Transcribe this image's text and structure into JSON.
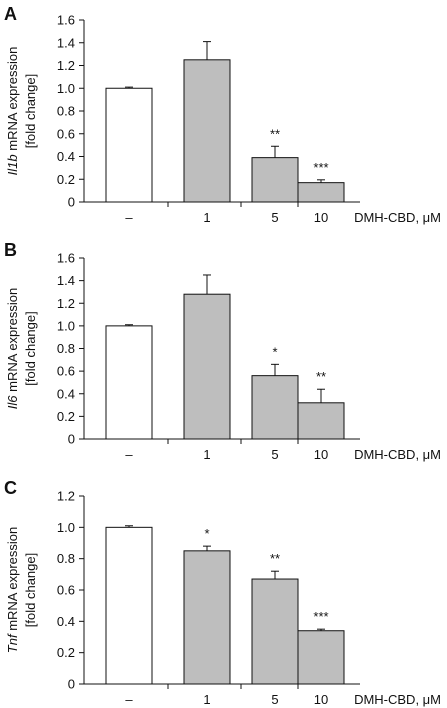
{
  "chart_data": [
    {
      "type": "bar",
      "panel": "A",
      "ylabel_italic": "Il1b",
      "ylabel_rest": " mRNA expression",
      "ylabel_line2": "[fold change]",
      "xlabel": "DMH-CBD, μM",
      "categories": [
        "–",
        "1",
        "5",
        "10"
      ],
      "values": [
        1.0,
        1.25,
        0.39,
        0.17
      ],
      "errors": [
        0.01,
        0.16,
        0.1,
        0.025
      ],
      "significance": [
        "",
        "",
        "**",
        "***"
      ],
      "ylim": [
        0,
        1.6
      ],
      "yticks": [
        0,
        0.2,
        0.4,
        0.6,
        0.8,
        1.0,
        1.2,
        1.4,
        1.6
      ],
      "yticklabels": [
        "0",
        "0.2",
        "0.4",
        "0.6",
        "0.8",
        "1.0",
        "1.2",
        "1.4",
        "1.6"
      ],
      "colors": [
        "#ffffff",
        "#bebebe",
        "#bebebe",
        "#bebebe"
      ]
    },
    {
      "type": "bar",
      "panel": "B",
      "ylabel_italic": "Il6",
      "ylabel_rest": " mRNA expression",
      "ylabel_line2": "[fold change]",
      "xlabel": "DMH-CBD, μM",
      "categories": [
        "–",
        "1",
        "5",
        "10"
      ],
      "values": [
        1.0,
        1.28,
        0.56,
        0.32
      ],
      "errors": [
        0.01,
        0.17,
        0.1,
        0.12
      ],
      "significance": [
        "",
        "",
        "*",
        "**"
      ],
      "ylim": [
        0,
        1.6
      ],
      "yticks": [
        0,
        0.2,
        0.4,
        0.6,
        0.8,
        1.0,
        1.2,
        1.4,
        1.6
      ],
      "yticklabels": [
        "0",
        "0.2",
        "0.4",
        "0.6",
        "0.8",
        "1.0",
        "1.2",
        "1.4",
        "1.6"
      ],
      "colors": [
        "#ffffff",
        "#bebebe",
        "#bebebe",
        "#bebebe"
      ]
    },
    {
      "type": "bar",
      "panel": "C",
      "ylabel_italic": "Tnf",
      "ylabel_rest": " mRNA expression",
      "ylabel_line2": "[fold change]",
      "xlabel": "DMH-CBD, μM",
      "categories": [
        "–",
        "1",
        "5",
        "10"
      ],
      "values": [
        1.0,
        0.85,
        0.67,
        0.34
      ],
      "errors": [
        0.01,
        0.03,
        0.05,
        0.01
      ],
      "significance": [
        "",
        "*",
        "**",
        "***"
      ],
      "ylim": [
        0,
        1.2
      ],
      "yticks": [
        0,
        0.2,
        0.4,
        0.6,
        0.8,
        1.0,
        1.2
      ],
      "yticklabels": [
        "0",
        "0.2",
        "0.4",
        "0.6",
        "0.8",
        "1.0",
        "1.2"
      ],
      "colors": [
        "#ffffff",
        "#bebebe",
        "#bebebe",
        "#bebebe"
      ]
    }
  ]
}
